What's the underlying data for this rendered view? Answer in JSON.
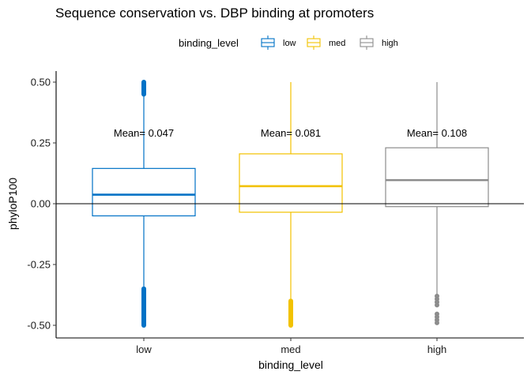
{
  "chart_data": {
    "type": "boxplot",
    "title": "Sequence conservation vs. DBP binding at promoters",
    "xlabel": "binding_level",
    "ylabel": "phyloP100",
    "ylim": [
      -0.55,
      0.55
    ],
    "yticks": [
      -0.5,
      -0.25,
      0.0,
      0.25,
      0.5
    ],
    "ytick_labels": [
      "-0.50",
      "-0.25",
      "0.00",
      "0.25",
      "0.50"
    ],
    "categories": [
      "low",
      "med",
      "high"
    ],
    "legend": {
      "title": "binding_level",
      "position": "top",
      "entries": [
        "low",
        "med",
        "high"
      ]
    },
    "reference_line": 0.0,
    "series": [
      {
        "name": "low",
        "color": "#0072C6",
        "whisker_low": -0.5,
        "q1": -0.05,
        "median": 0.037,
        "q3": 0.145,
        "whisker_high": 0.5,
        "outliers_low": [
          -0.35,
          -0.5
        ],
        "outliers_high": [
          0.45,
          0.5
        ],
        "mean_label": "Mean= 0.047",
        "mean_label_y": 0.29
      },
      {
        "name": "med",
        "color": "#F2C200",
        "whisker_low": -0.4,
        "q1": -0.035,
        "median": 0.072,
        "q3": 0.205,
        "whisker_high": 0.5,
        "outliers_low": [
          -0.4,
          -0.5
        ],
        "outliers_high": [],
        "mean_label": "Mean= 0.081",
        "mean_label_y": 0.29
      },
      {
        "name": "high",
        "color": "#8C8C8C",
        "whisker_low": -0.375,
        "q1": -0.012,
        "median": 0.097,
        "q3": 0.23,
        "whisker_high": 0.5,
        "outliers_low": [
          -0.38,
          -0.49
        ],
        "outliers_high": [],
        "mean_label": "Mean= 0.108",
        "mean_label_y": 0.29
      }
    ]
  }
}
